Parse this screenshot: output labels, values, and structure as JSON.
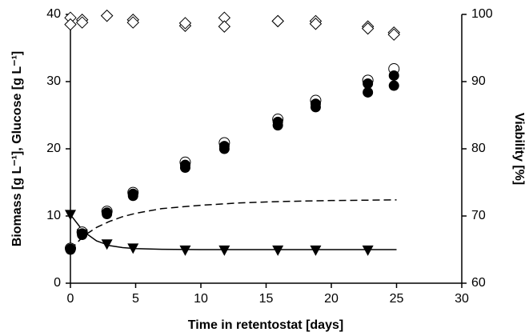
{
  "chart_data": {
    "type": "scatter",
    "x_label": "Time in retentostat [days]",
    "y_label": "Biomass [g L⁻¹], Glucose [g L⁻¹]",
    "y2_label": "Viability [%]",
    "xlim": [
      0,
      30
    ],
    "xticks": [
      0,
      5,
      10,
      15,
      20,
      25,
      30
    ],
    "ylim": [
      0,
      40
    ],
    "yticks": [
      0,
      10,
      20,
      30,
      40
    ],
    "y2lim": [
      60,
      100
    ],
    "y2ticks": [
      60,
      70,
      80,
      90,
      100
    ],
    "series": [
      {
        "marker": "line",
        "dash": true,
        "color": "#000000",
        "x": [
          0,
          1,
          2,
          3,
          4,
          5,
          7,
          10,
          13,
          16,
          20,
          25
        ],
        "values": [
          5,
          7.0,
          8.3,
          9.2,
          9.9,
          10.4,
          11.1,
          11.6,
          11.95,
          12.15,
          12.3,
          12.4
        ]
      },
      {
        "marker": "line",
        "dash": false,
        "color": "#000000",
        "x": [
          0,
          1,
          2,
          3,
          4,
          5,
          7,
          10,
          13,
          16,
          20,
          25
        ],
        "values": [
          10.2,
          7.7,
          6.3,
          5.6,
          5.3,
          5.15,
          5.05,
          5,
          5,
          5,
          5,
          5
        ]
      },
      {
        "marker": "circle-open",
        "color": "#000000",
        "x": [
          0,
          0.9,
          2.8,
          4.8,
          8.8,
          11.8,
          15.9,
          18.8,
          22.8,
          24.8
        ],
        "values": [
          5.2,
          7.6,
          10.7,
          13.5,
          18.0,
          20.9,
          24.4,
          27.2,
          30.2,
          31.9
        ]
      },
      {
        "marker": "circle",
        "color": "#000000",
        "x": [
          0,
          0.9,
          2.8,
          4.8,
          8.8,
          11.8,
          15.9,
          18.8,
          22.8,
          24.8
        ],
        "values": [
          5.1,
          7.4,
          10.5,
          13.3,
          17.6,
          20.4,
          24.0,
          26.7,
          29.7,
          30.9
        ]
      },
      {
        "marker": "circle",
        "color": "#000000",
        "x": [
          0,
          0.9,
          2.8,
          4.8,
          8.8,
          11.8,
          15.9,
          18.8,
          22.8,
          24.8
        ],
        "values": [
          5,
          7.2,
          10.3,
          13.0,
          17.2,
          20.0,
          23.5,
          26.2,
          28.4,
          29.4
        ]
      },
      {
        "marker": "triangle-down",
        "color": "#000000",
        "x": [
          0,
          0.9,
          2.8,
          4.8,
          8.8,
          11.8,
          15.9,
          18.8,
          22.8
        ],
        "values": [
          10.2,
          7.3,
          5.8,
          5.2,
          4.9,
          4.9,
          4.9,
          4.9,
          4.9
        ]
      },
      {
        "marker": "diamond-open",
        "axis": "y2",
        "color": "#000000",
        "x": [
          0,
          0.9,
          2.8,
          4.8,
          8.8,
          11.8,
          15.9,
          18.8,
          22.8,
          24.8
        ],
        "values": [
          99.5,
          99.2,
          99.8,
          99.2,
          98.3,
          99.5,
          99.0,
          99.0,
          98.2,
          97.3
        ]
      },
      {
        "marker": "diamond-open",
        "axis": "y2",
        "color": "#000000",
        "x": [
          0,
          0.9,
          2.8,
          4.8,
          8.8,
          11.8,
          15.9,
          18.8,
          22.8,
          24.8
        ],
        "values": [
          98.5,
          98.8,
          99.8,
          98.8,
          98.7,
          98.2,
          99.0,
          98.6,
          97.9,
          97.0
        ]
      }
    ]
  }
}
